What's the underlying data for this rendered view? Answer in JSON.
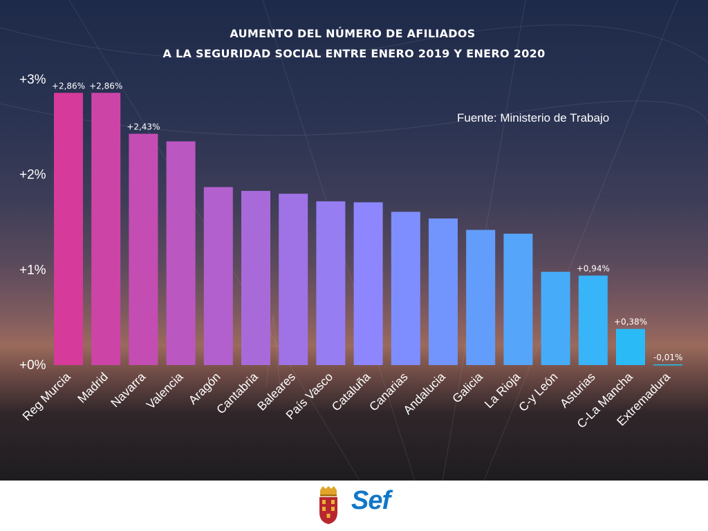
{
  "header": {
    "title_line1": "AUMENTO DEL NÚMERO DE AFILIADOS",
    "title_line2": "A LA SEGURIDAD SOCIAL ENTRE ENERO 2019 Y ENERO 2020"
  },
  "source_note": "Fuente: Ministerio de Trabajo",
  "footer": {
    "crest_icon": "region-of-murcia-coat-of-arms-icon",
    "logo_text": "Sef"
  },
  "colors": {
    "start": "#d63a9a",
    "mid": "#8d86ff",
    "end": "#1cc3f6"
  },
  "chart_data": {
    "type": "bar",
    "title": "AUMENTO DEL NÚMERO DE AFILIADOS A LA SEGURIDAD SOCIAL ENTRE ENERO 2019 Y ENERO 2020",
    "xlabel": "",
    "ylabel": "",
    "ylim": [
      0,
      3
    ],
    "yticks": [
      0,
      1,
      2,
      3
    ],
    "ytick_labels": [
      "+0%",
      "+1%",
      "+2%",
      "+3%"
    ],
    "grid": false,
    "categories": [
      "Reg Murcia",
      "Madrid",
      "Navarra",
      "Valencia",
      "Aragón",
      "Cantabria",
      "Baleares",
      "País Vasco",
      "Cataluña",
      "Canarias",
      "Andalucia",
      "Galicia",
      "La Rioja",
      "C-y León",
      "Asturias",
      "C-La Mancha",
      "Extremadura"
    ],
    "values": [
      2.86,
      2.86,
      2.43,
      2.35,
      1.87,
      1.83,
      1.8,
      1.72,
      1.71,
      1.61,
      1.54,
      1.42,
      1.38,
      0.98,
      0.94,
      0.38,
      -0.01
    ],
    "data_labels": [
      "+2,86%",
      "+2,86%",
      "+2,43%",
      "",
      "",
      "",
      "",
      "",
      "",
      "",
      "",
      "",
      "",
      "",
      "+0,94%",
      "+0,38%",
      "-0,01%"
    ]
  }
}
